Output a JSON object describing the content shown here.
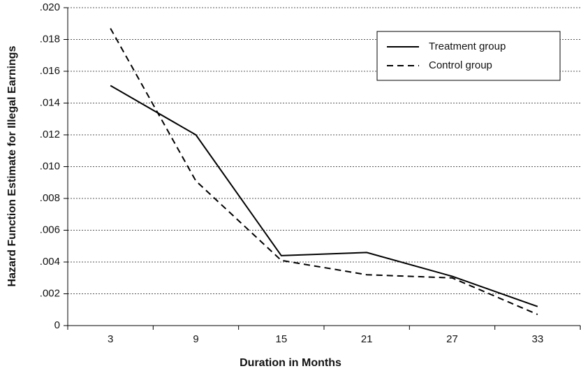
{
  "chart_data": {
    "type": "line",
    "y_label": "Hazard Function Estimate for Illegal Earnings",
    "x_label": "Duration in Months",
    "categories": [
      "3",
      "9",
      "15",
      "21",
      "27",
      "33"
    ],
    "series": [
      {
        "name": "Treatment group",
        "color": "#000000",
        "dash": "solid",
        "values": [
          0.0151,
          0.012,
          0.0044,
          0.0046,
          0.0031,
          0.0012
        ]
      },
      {
        "name": "Control group",
        "color": "#000000",
        "dash": "dashed",
        "values": [
          0.0187,
          0.0091,
          0.0041,
          0.0032,
          0.003,
          0.0007
        ]
      }
    ],
    "ylim": [
      0,
      0.02
    ],
    "yticks": [
      0,
      {
        "value": 0.002,
        "label": ".002"
      },
      {
        "value": 0.004,
        "label": ".004"
      },
      {
        "value": 0.006,
        "label": ".006"
      },
      {
        "value": 0.008,
        "label": ".008"
      },
      {
        "value": 0.01,
        "label": ".010"
      },
      {
        "value": 0.012,
        "label": ".012"
      },
      {
        "value": 0.014,
        "label": ".014"
      },
      {
        "value": 0.016,
        "label": ".016"
      },
      {
        "value": 0.018,
        "label": ".018"
      },
      {
        "value": 0.02,
        "label": ".020"
      }
    ],
    "grid": true,
    "legend": "upper-right"
  }
}
